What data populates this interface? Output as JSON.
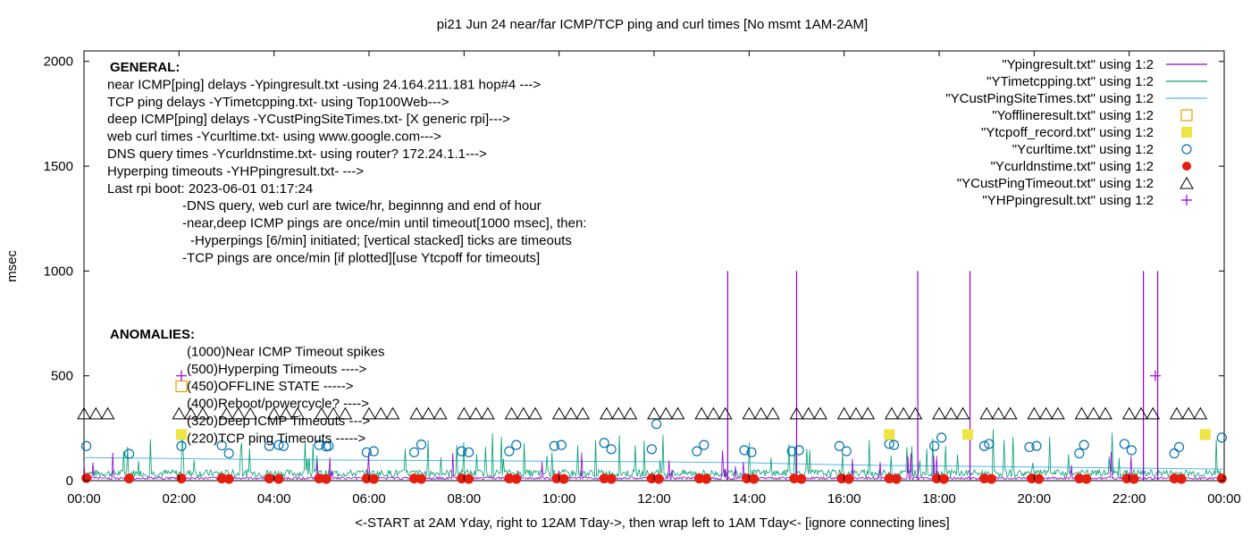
{
  "chart_data": {
    "type": "line",
    "title": "pi21 Jun 24  near/far ICMP/TCP ping and curl times [No msmt 1AM-2AM]",
    "xlabel": "<-START at 2AM Yday, right to 12AM Tday->, then wrap left to 1AM Tday<- [ignore connecting lines]",
    "ylabel": "msec",
    "xlim": [
      0,
      24
    ],
    "ylim": [
      0,
      2050
    ],
    "x_ticks": [
      "00:00",
      "02:00",
      "04:00",
      "06:00",
      "08:00",
      "10:00",
      "12:00",
      "14:00",
      "16:00",
      "18:00",
      "20:00",
      "22:00",
      "00:00"
    ],
    "y_ticks": [
      "0",
      "500",
      "1000",
      "1500",
      "2000"
    ],
    "y_tick_values": [
      0,
      500,
      1000,
      1500,
      2000
    ],
    "legend_position": "top-right",
    "legend": [
      {
        "label": "\"Ypingresult.txt\" using 1:2",
        "marker": "line",
        "color": "#9400d3"
      },
      {
        "label": "\"YTimetcpping.txt\" using 1:2",
        "marker": "line",
        "color": "#009e73"
      },
      {
        "label": "\"YCustPingSiteTimes.txt\" using 1:2",
        "marker": "line",
        "color": "#56b4e9"
      },
      {
        "label": "\"Yofflineresult.txt\" using 1:2",
        "marker": "open-square",
        "color": "#e69f00"
      },
      {
        "label": "\"Ytcpoff_record.txt\" using 1:2",
        "marker": "filled-square",
        "color": "#f0e442"
      },
      {
        "label": "\"Ycurltime.txt\" using 1:2",
        "marker": "open-circle",
        "color": "#0072b2"
      },
      {
        "label": "\"Ycurldnstime.txt\" using 1:2",
        "marker": "filled-circle",
        "color": "#e51e10"
      },
      {
        "label": "\"YCustPingTimeout.txt\" using 1:2",
        "marker": "open-triangle",
        "color": "#000000"
      },
      {
        "label": "\"YHPpingresult.txt\" using 1:2",
        "marker": "plus",
        "color": "#9400d3"
      }
    ],
    "annotations_general": [
      "GENERAL:",
      "near ICMP[ping] delays -Ypingresult.txt -using 24.164.211.181 hop#4 --->",
      "TCP ping delays -YTimetcpping.txt- using Top100Web--->",
      "deep ICMP[ping] delays -YCustPingSiteTimes.txt- [X generic rpi]--->",
      "web curl times -Ycurltime.txt- using www.google.com--->",
      "DNS query times -Ycurldnstime.txt- using router? 172.24.1.1--->",
      "Hyperping timeouts -YHPpingresult.txt- --->",
      "Last rpi boot: 2023-06-01 01:17:24",
      "-DNS query, web curl are twice/hr, beginnng and end of hour",
      "-near,deep ICMP pings are once/min until timeout[1000 msec], then:",
      "-Hyperpings [6/min] initiated; [vertical stacked] ticks are timeouts",
      "-TCP pings are once/min [if plotted][use Ytcpoff for timeouts]"
    ],
    "annotations_anomalies": [
      "ANOMALIES:",
      "(1000)Near ICMP Timeout spikes",
      "(500)Hyperping Timeouts ---->",
      "(450)OFFLINE STATE ----->",
      "(400)Reboot/powercycle? ---->",
      "(320)Deep ICMP Timeouts --->",
      "(220)TCP ping Timeouts ----->"
    ],
    "series": {
      "near_icmp_spikes": {
        "x": [
          13.55,
          15.0,
          17.55,
          18.65,
          22.3,
          22.6
        ],
        "y": [
          1000,
          1000,
          1000,
          1000,
          1000,
          1000
        ]
      },
      "hyperping_timeouts": {
        "x": [
          2.05,
          22.55
        ],
        "y": [
          500,
          500
        ]
      },
      "offline_state": {
        "x": [
          2.05
        ],
        "y": [
          450
        ]
      },
      "tcp_ping_timeouts": {
        "x": [
          2.05,
          16.95,
          18.6,
          23.6
        ],
        "y": [
          220,
          220,
          220,
          220
        ]
      },
      "deep_icmp_timeouts_clusters": [
        0.25,
        2.25,
        3.25,
        4.25,
        5.25,
        6.25,
        7.25,
        8.25,
        9.25,
        10.25,
        11.25,
        12.25,
        13.25,
        14.25,
        15.25,
        16.25,
        17.25,
        18.25,
        19.25,
        20.25,
        21.25,
        22.25,
        23.25
      ],
      "deep_icmp_timeout_level": 320,
      "curl_times": {
        "x": [
          0.05,
          0.95,
          2.05,
          2.9,
          3.05,
          3.9,
          4.1,
          4.2,
          4.95,
          5.1,
          5.15,
          5.95,
          6.1,
          6.95,
          7.1,
          7.95,
          8.1,
          8.95,
          9.1,
          9.9,
          10.05,
          10.95,
          11.1,
          11.95,
          12.05,
          12.9,
          13.05,
          13.9,
          14.05,
          14.9,
          15.05,
          15.9,
          16.05,
          16.95,
          17.05,
          17.9,
          18.05,
          18.95,
          19.05,
          19.9,
          20.05,
          20.95,
          21.05,
          21.9,
          22.05,
          22.95,
          23.05,
          23.95
        ],
        "y": [
          165,
          128,
          165,
          168,
          130,
          165,
          170,
          165,
          170,
          163,
          165,
          135,
          140,
          135,
          172,
          140,
          135,
          140,
          170,
          165,
          170,
          180,
          150,
          150,
          270,
          140,
          170,
          145,
          135,
          140,
          145,
          165,
          140,
          175,
          170,
          165,
          205,
          165,
          175,
          160,
          165,
          130,
          170,
          175,
          145,
          130,
          160,
          205
        ]
      },
      "dns_times": {
        "x": [
          0.05,
          0.95,
          2.05,
          2.9,
          3.05,
          3.9,
          4.1,
          4.95,
          5.1,
          5.95,
          6.1,
          6.95,
          7.1,
          7.95,
          8.1,
          8.95,
          9.1,
          9.95,
          10.1,
          10.95,
          11.1,
          11.95,
          12.1,
          12.95,
          13.1,
          13.95,
          14.1,
          14.95,
          15.1,
          15.95,
          16.1,
          16.95,
          17.1,
          17.95,
          18.1,
          18.95,
          19.1,
          19.95,
          20.1,
          20.95,
          21.1,
          21.95,
          22.1,
          22.95,
          23.1,
          23.95
        ],
        "y": [
          12,
          10,
          10,
          10,
          8,
          10,
          8,
          10,
          8,
          10,
          8,
          10,
          8,
          10,
          8,
          10,
          8,
          10,
          8,
          10,
          8,
          10,
          8,
          10,
          8,
          10,
          8,
          10,
          8,
          10,
          8,
          10,
          8,
          10,
          8,
          10,
          8,
          10,
          8,
          10,
          8,
          10,
          8,
          10,
          8,
          10
        ]
      },
      "deep_icmp_baseline": {
        "x": [
          0,
          4,
          8,
          12,
          14,
          16,
          20,
          24
        ],
        "y": [
          110,
          100,
          95,
          90,
          85,
          75,
          65,
          55
        ]
      },
      "tcp_ping_baseline": {
        "x": [
          0,
          24
        ],
        "y": [
          35,
          35
        ]
      }
    }
  }
}
